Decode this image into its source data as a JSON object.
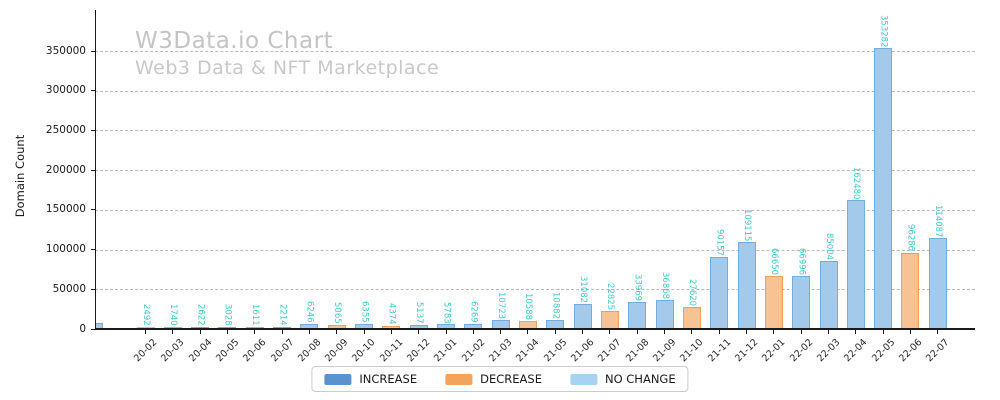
{
  "title": "W3Data.io Chart",
  "subtitle": "Web3 Data & NFT Marketplace",
  "colors": {
    "title": "#c4c4c4",
    "subtitle": "#c8c8c8",
    "value_label": "#3eccc5",
    "grid": "#b9b9b9",
    "axis": "#1a1a1a",
    "increase_fill": "#a3c9eb",
    "increase_edge": "#76acdc",
    "decrease_fill": "#f8c394",
    "decrease_edge": "#f0a056",
    "no_change_fill": "#b7dff8",
    "no_change_edge": "#97ccf0",
    "legend_increase": "#5b92ce",
    "legend_decrease": "#f2a35c",
    "legend_no_change": "#a6d2f3"
  },
  "chart_data": {
    "type": "bar",
    "title": "W3Data.io Chart",
    "subtitle": "Web3 Data & NFT Marketplace",
    "xlabel": "",
    "ylabel": "Domain Count",
    "ylim": [
      0,
      400000
    ],
    "yticks": [
      0,
      50000,
      100000,
      150000,
      200000,
      250000,
      300000,
      350000
    ],
    "grid": "horizontal-dashed",
    "legend_position": "bottom-center",
    "legend": [
      {
        "label": "INCREASE",
        "type": "increase"
      },
      {
        "label": "DECREASE",
        "type": "decrease"
      },
      {
        "label": "NO CHANGE",
        "type": "no_change"
      }
    ],
    "categories": [
      "20-02",
      "20-03",
      "20-04",
      "20-05",
      "20-06",
      "20-07",
      "20-08",
      "20-09",
      "20-10",
      "20-11",
      "20-12",
      "21-01",
      "21-02",
      "21-03",
      "21-04",
      "21-05",
      "21-06",
      "21-07",
      "21-08",
      "21-09",
      "21-10",
      "21-11",
      "21-12",
      "22-01",
      "22-02",
      "22-03",
      "22-04",
      "22-05",
      "22-06",
      "22-07"
    ],
    "points": [
      {
        "x": "20-02",
        "y": 2492,
        "type": "no_change"
      },
      {
        "x": "20-03",
        "y": 1740,
        "type": "decrease"
      },
      {
        "x": "20-04",
        "y": 2622,
        "type": "increase"
      },
      {
        "x": "20-05",
        "y": 3028,
        "type": "increase"
      },
      {
        "x": "20-06",
        "y": 1611,
        "type": "decrease"
      },
      {
        "x": "20-07",
        "y": 2214,
        "type": "increase"
      },
      {
        "x": "20-08",
        "y": 6246,
        "type": "increase"
      },
      {
        "x": "20-09",
        "y": 5065,
        "type": "decrease"
      },
      {
        "x": "20-10",
        "y": 6355,
        "type": "increase"
      },
      {
        "x": "20-11",
        "y": 4374,
        "type": "decrease"
      },
      {
        "x": "20-12",
        "y": 5137,
        "type": "increase"
      },
      {
        "x": "21-01",
        "y": 5783,
        "type": "increase"
      },
      {
        "x": "21-02",
        "y": 6269,
        "type": "increase"
      },
      {
        "x": "21-03",
        "y": 10723,
        "type": "increase"
      },
      {
        "x": "21-04",
        "y": 10588,
        "type": "decrease"
      },
      {
        "x": "21-05",
        "y": 10882,
        "type": "increase"
      },
      {
        "x": "21-06",
        "y": 31082,
        "type": "increase"
      },
      {
        "x": "21-07",
        "y": 22825,
        "type": "decrease"
      },
      {
        "x": "21-08",
        "y": 33969,
        "type": "increase"
      },
      {
        "x": "21-09",
        "y": 36868,
        "type": "increase"
      },
      {
        "x": "21-10",
        "y": 27620,
        "type": "decrease"
      },
      {
        "x": "21-11",
        "y": 90157,
        "type": "increase"
      },
      {
        "x": "21-12",
        "y": 109115,
        "type": "increase"
      },
      {
        "x": "22-01",
        "y": 66650,
        "type": "decrease"
      },
      {
        "x": "22-02",
        "y": 66996,
        "type": "increase"
      },
      {
        "x": "22-03",
        "y": 85004,
        "type": "increase"
      },
      {
        "x": "22-04",
        "y": 162480,
        "type": "increase"
      },
      {
        "x": "22-05",
        "y": 353282,
        "type": "increase"
      },
      {
        "x": "22-06",
        "y": 96286,
        "type": "decrease"
      },
      {
        "x": "22-07",
        "y": 114087,
        "type": "increase"
      }
    ],
    "clipped_bar_at_left_axis": {
      "type": "increase",
      "label_visible": false
    }
  }
}
